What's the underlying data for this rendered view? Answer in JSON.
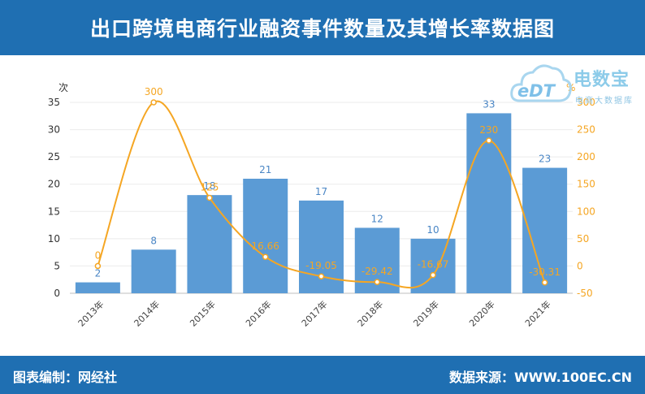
{
  "header": {
    "title": "出口跨境电商行业融资事件数量及其增长率数据图"
  },
  "footer": {
    "left": "图表编制：网经社",
    "right": "数据来源：WWW.100EC.CN"
  },
  "logo": {
    "cloud_text": "eDT",
    "brand": "电数宝",
    "sub": "电商大数据库"
  },
  "colors": {
    "bar": "#5b9bd5",
    "line": "#f5a623",
    "header": "#1f6fb2",
    "bar_label": "#4a86c5",
    "line_label": "#f5a623"
  },
  "chart_data": {
    "type": "bar",
    "categories": [
      "2013年",
      "2014年",
      "2015年",
      "2016年",
      "2017年",
      "2018年",
      "2019年",
      "2020年",
      "2021年"
    ],
    "series": [
      {
        "type": "bar",
        "axis": "left",
        "values": [
          2,
          8,
          18,
          21,
          17,
          12,
          10,
          33,
          23
        ],
        "labels": [
          "2",
          "8",
          "18",
          "21",
          "17",
          "12",
          "10",
          "33",
          "23"
        ]
      },
      {
        "type": "line",
        "axis": "right",
        "values": [
          0,
          300,
          125,
          16.66,
          -19.05,
          -29.42,
          -16.67,
          230,
          -30.31
        ],
        "labels": [
          "0",
          "300",
          "125",
          "16.66",
          "-19.05",
          "-29.42",
          "-16.67",
          "230",
          "-30.31"
        ]
      }
    ],
    "y_left": {
      "label": "次",
      "min": 0,
      "max": 35,
      "ticks": [
        "0",
        "5",
        "10",
        "15",
        "20",
        "25",
        "30",
        "35"
      ]
    },
    "y_right": {
      "label": "%",
      "min": -50,
      "max": 300,
      "ticks": [
        "-50",
        "0",
        "50",
        "100",
        "150",
        "200",
        "250",
        "300"
      ]
    },
    "grid": true
  }
}
